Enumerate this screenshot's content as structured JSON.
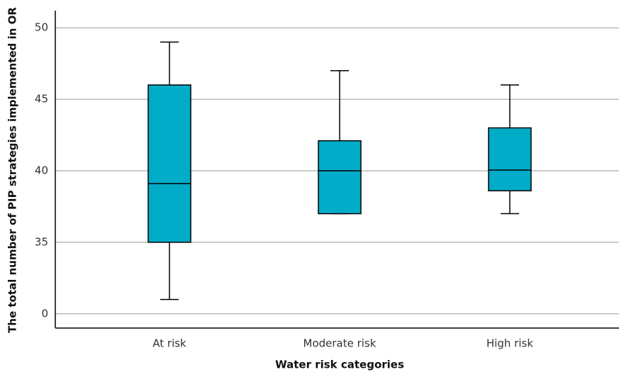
{
  "chart_data": {
    "type": "box",
    "x_label": "Water risk categories",
    "y_label": "The total number of PIP strategies implemented in OR",
    "categories": [
      "At risk",
      "Moderate risk",
      "High risk"
    ],
    "min": [
      31,
      37,
      37
    ],
    "q1": [
      35,
      37,
      38.6
    ],
    "median": [
      39.1,
      40,
      40.05
    ],
    "q3": [
      46,
      42.1,
      43
    ],
    "max": [
      49,
      47,
      46
    ],
    "color": "#00acc8",
    "ylim": [
      29,
      51.1
    ],
    "yticks": [
      {
        "value": 30,
        "label": "0"
      },
      35,
      40,
      45,
      50
    ],
    "grid": true
  }
}
